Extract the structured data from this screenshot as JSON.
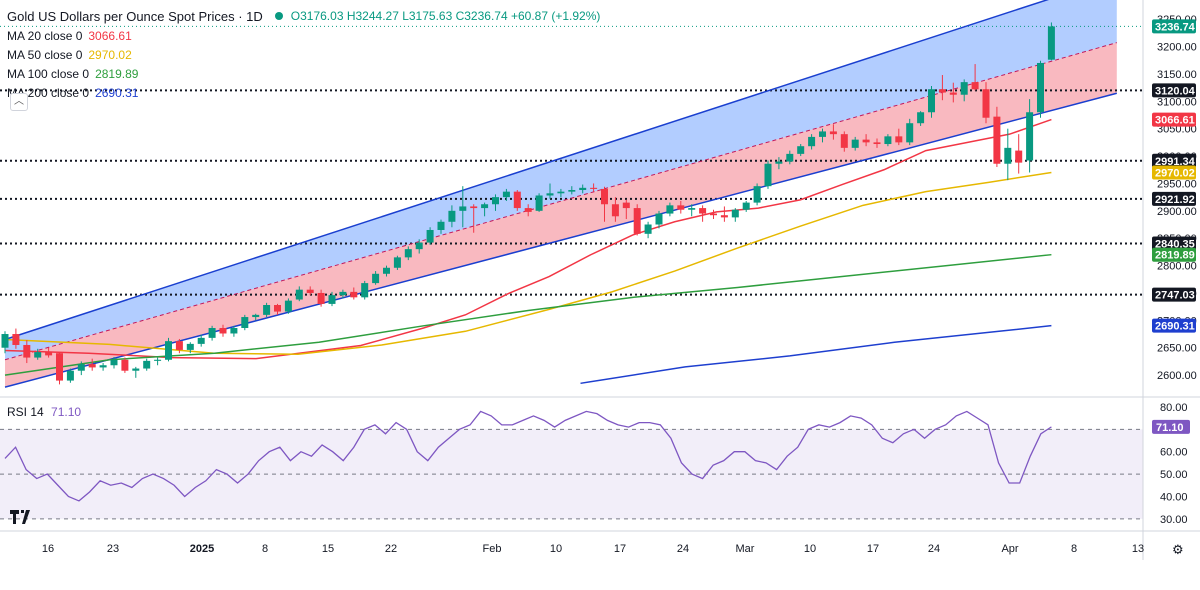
{
  "header": {
    "title": "Gold US Dollars per Ounce Spot Prices · 1D",
    "ohlc": "O3176.03 H3244.27 L3175.63 C3236.74 +60.87 (+1.92%)",
    "up_color": "#089981",
    "down_color": "#f23645"
  },
  "indicators": [
    {
      "label": "MA 20 close 0",
      "value": "3066.61",
      "color": "#f23645"
    },
    {
      "label": "MA 50 close 0",
      "value": "2970.02",
      "color": "#e6b800"
    },
    {
      "label": "MA 100 close 0",
      "value": "2819.89",
      "color": "#2e9e3e"
    },
    {
      "label": "MA 200 close 0",
      "value": "2690.31",
      "color": "#1e3fcf"
    }
  ],
  "rsi": {
    "label": "RSI 14",
    "value": "71.10",
    "color": "#7e57c2",
    "ticks": [
      "80.00",
      "60.00",
      "50.00",
      "40.00",
      "30.00"
    ],
    "badge": "71.10"
  },
  "chart_data": {
    "type": "candlestick",
    "price_ticks": [
      "3250.00",
      "3200.00",
      "3150.00",
      "3100.00",
      "3050.00",
      "3000.00",
      "2950.00",
      "2900.00",
      "2850.00",
      "2800.00",
      "2750.00",
      "2700.00",
      "2650.00",
      "2600.00"
    ],
    "x_tick_labels": [
      "16",
      "23",
      "2025",
      "8",
      "15",
      "22",
      "Feb",
      "10",
      "17",
      "24",
      "Mar",
      "10",
      "17",
      "24",
      "Apr",
      "8",
      "13"
    ],
    "horizontal_levels": [
      {
        "price": 3120.04,
        "label": "3120.04"
      },
      {
        "price": 2991.34,
        "label": "2991.34"
      },
      {
        "price": 2921.92,
        "label": "2921.92"
      },
      {
        "price": 2840.35,
        "label": "2840.35"
      },
      {
        "price": 2747.03,
        "label": "2747.03"
      }
    ],
    "badges": [
      {
        "price": 3236.74,
        "label": "3236.74",
        "color": "#089981"
      },
      {
        "price": 3120.04,
        "label": "3120.04",
        "color": "#131722"
      },
      {
        "price": 3066.61,
        "label": "3066.61",
        "color": "#f23645"
      },
      {
        "price": 2991.34,
        "label": "2991.34",
        "color": "#131722"
      },
      {
        "price": 2970.02,
        "label": "2970.02",
        "color": "#e6b800"
      },
      {
        "price": 2921.92,
        "label": "2921.92",
        "color": "#131722"
      },
      {
        "price": 2840.35,
        "label": "2840.35",
        "color": "#131722"
      },
      {
        "price": 2819.89,
        "label": "2819.89",
        "color": "#2e9e3e"
      },
      {
        "price": 2747.03,
        "label": "2747.03",
        "color": "#131722"
      },
      {
        "price": 2690.31,
        "label": "2690.31",
        "color": "#1e3fcf"
      }
    ],
    "channel": {
      "upper": [
        [
          0,
          2665
        ],
        [
          84,
          3210
        ]
      ],
      "middle": [
        [
          0,
          2628
        ],
        [
          84,
          3105
        ]
      ],
      "lower": [
        [
          0,
          2578
        ],
        [
          84,
          3020
        ]
      ]
    },
    "candles": [
      [
        2650,
        2680,
        2640,
        2675
      ],
      [
        2675,
        2685,
        2648,
        2655
      ],
      [
        2655,
        2664,
        2622,
        2632
      ],
      [
        2632,
        2648,
        2628,
        2642
      ],
      [
        2642,
        2650,
        2632,
        2636
      ],
      [
        2640,
        2642,
        2583,
        2590
      ],
      [
        2590,
        2612,
        2586,
        2608
      ],
      [
        2608,
        2625,
        2600,
        2620
      ],
      [
        2620,
        2630,
        2608,
        2614
      ],
      [
        2614,
        2622,
        2608,
        2618
      ],
      [
        2618,
        2633,
        2612,
        2628
      ],
      [
        2628,
        2632,
        2604,
        2608
      ],
      [
        2608,
        2615,
        2595,
        2612
      ],
      [
        2612,
        2630,
        2608,
        2626
      ],
      [
        2626,
        2632,
        2618,
        2628
      ],
      [
        2628,
        2668,
        2625,
        2662
      ],
      [
        2662,
        2666,
        2640,
        2646
      ],
      [
        2646,
        2660,
        2640,
        2657
      ],
      [
        2657,
        2674,
        2652,
        2668
      ],
      [
        2668,
        2690,
        2663,
        2686
      ],
      [
        2686,
        2692,
        2670,
        2676
      ],
      [
        2676,
        2690,
        2670,
        2686
      ],
      [
        2686,
        2710,
        2682,
        2706
      ],
      [
        2706,
        2712,
        2700,
        2710
      ],
      [
        2710,
        2732,
        2706,
        2728
      ],
      [
        2728,
        2730,
        2710,
        2716
      ],
      [
        2716,
        2740,
        2712,
        2736
      ],
      [
        2738,
        2762,
        2735,
        2756
      ],
      [
        2756,
        2762,
        2746,
        2750
      ],
      [
        2750,
        2756,
        2725,
        2730
      ],
      [
        2730,
        2752,
        2726,
        2746
      ],
      [
        2746,
        2756,
        2740,
        2752
      ],
      [
        2752,
        2760,
        2738,
        2742
      ],
      [
        2742,
        2772,
        2738,
        2768
      ],
      [
        2768,
        2790,
        2765,
        2785
      ],
      [
        2785,
        2800,
        2780,
        2796
      ],
      [
        2796,
        2818,
        2792,
        2815
      ],
      [
        2815,
        2835,
        2810,
        2830
      ],
      [
        2830,
        2848,
        2822,
        2842
      ],
      [
        2842,
        2870,
        2838,
        2865
      ],
      [
        2865,
        2884,
        2858,
        2880
      ],
      [
        2880,
        2910,
        2870,
        2900
      ],
      [
        2900,
        2945,
        2870,
        2908
      ],
      [
        2908,
        2912,
        2860,
        2905
      ],
      [
        2905,
        2915,
        2890,
        2912
      ],
      [
        2912,
        2930,
        2900,
        2925
      ],
      [
        2925,
        2940,
        2918,
        2935
      ],
      [
        2935,
        2938,
        2900,
        2905
      ],
      [
        2905,
        2912,
        2890,
        2898
      ],
      [
        2900,
        2932,
        2898,
        2928
      ],
      [
        2928,
        2950,
        2922,
        2932
      ],
      [
        2932,
        2940,
        2925,
        2935
      ],
      [
        2935,
        2945,
        2930,
        2938
      ],
      [
        2938,
        2948,
        2932,
        2942
      ],
      [
        2942,
        2950,
        2935,
        2940
      ],
      [
        2940,
        2944,
        2880,
        2912
      ],
      [
        2912,
        2925,
        2880,
        2890
      ],
      [
        2915,
        2920,
        2885,
        2905
      ],
      [
        2905,
        2912,
        2855,
        2858
      ],
      [
        2858,
        2880,
        2850,
        2875
      ],
      [
        2875,
        2900,
        2868,
        2895
      ],
      [
        2895,
        2915,
        2890,
        2910
      ],
      [
        2910,
        2918,
        2895,
        2902
      ],
      [
        2902,
        2912,
        2890,
        2905
      ],
      [
        2905,
        2910,
        2880,
        2895
      ],
      [
        2895,
        2902,
        2885,
        2892
      ],
      [
        2892,
        2908,
        2880,
        2888
      ],
      [
        2888,
        2905,
        2880,
        2902
      ],
      [
        2902,
        2918,
        2898,
        2915
      ],
      [
        2915,
        2950,
        2910,
        2945
      ],
      [
        2945,
        2992,
        2940,
        2986
      ],
      [
        2986,
        2998,
        2976,
        2990
      ],
      [
        2990,
        3010,
        2985,
        3004
      ],
      [
        3004,
        3022,
        3000,
        3018
      ],
      [
        3018,
        3040,
        3012,
        3035
      ],
      [
        3035,
        3050,
        3025,
        3045
      ],
      [
        3045,
        3058,
        3030,
        3040
      ],
      [
        3040,
        3045,
        3008,
        3015
      ],
      [
        3015,
        3035,
        3010,
        3030
      ],
      [
        3030,
        3040,
        3018,
        3025
      ],
      [
        3025,
        3032,
        3015,
        3022
      ],
      [
        3022,
        3040,
        3018,
        3036
      ],
      [
        3036,
        3050,
        3020,
        3025
      ],
      [
        3025,
        3068,
        3020,
        3060
      ],
      [
        3060,
        3082,
        3055,
        3080
      ],
      [
        3080,
        3128,
        3070,
        3122
      ],
      [
        3122,
        3148,
        3102,
        3116
      ],
      [
        3116,
        3134,
        3098,
        3112
      ],
      [
        3112,
        3140,
        3100,
        3135
      ],
      [
        3135,
        3168,
        3120,
        3122
      ],
      [
        3122,
        3135,
        3060,
        3070
      ],
      [
        3072,
        3090,
        2980,
        2986
      ],
      [
        2986,
        3050,
        2956,
        3015
      ],
      [
        3010,
        3040,
        2968,
        2988
      ],
      [
        2992,
        3104,
        2970,
        3080
      ],
      [
        3080,
        3174,
        3070,
        3170
      ],
      [
        3176,
        3244,
        3175,
        3236.74
      ]
    ],
    "series": [
      {
        "name": "MA 20 close 0",
        "values": [
          [
            0,
            2645
          ],
          [
            8,
            2640
          ],
          [
            16,
            2632
          ],
          [
            24,
            2630
          ],
          [
            34,
            2654
          ],
          [
            40,
            2686
          ],
          [
            44,
            2710
          ],
          [
            48,
            2748
          ],
          [
            52,
            2780
          ],
          [
            56,
            2820
          ],
          [
            60,
            2856
          ],
          [
            64,
            2880
          ],
          [
            68,
            2898
          ],
          [
            72,
            2905
          ],
          [
            76,
            2920
          ],
          [
            80,
            2948
          ],
          [
            84,
            2975
          ],
          [
            88,
            3010
          ],
          [
            92,
            3025
          ],
          [
            96,
            3040
          ],
          [
            100,
            3066.61
          ]
        ]
      },
      {
        "name": "MA 50 close 0",
        "values": [
          [
            0,
            2665
          ],
          [
            10,
            2656
          ],
          [
            20,
            2640
          ],
          [
            28,
            2638
          ],
          [
            36,
            2655
          ],
          [
            44,
            2680
          ],
          [
            52,
            2720
          ],
          [
            58,
            2752
          ],
          [
            64,
            2790
          ],
          [
            70,
            2832
          ],
          [
            76,
            2872
          ],
          [
            82,
            2910
          ],
          [
            88,
            2935
          ],
          [
            94,
            2952
          ],
          [
            100,
            2970.02
          ]
        ]
      },
      {
        "name": "MA 100 close 0",
        "values": [
          [
            0,
            2600
          ],
          [
            10,
            2628
          ],
          [
            20,
            2640
          ],
          [
            30,
            2660
          ],
          [
            40,
            2690
          ],
          [
            50,
            2718
          ],
          [
            60,
            2742
          ],
          [
            70,
            2760
          ],
          [
            80,
            2780
          ],
          [
            90,
            2800
          ],
          [
            100,
            2819.89
          ]
        ]
      },
      {
        "name": "MA 200 close 0",
        "values": [
          [
            55,
            2585
          ],
          [
            65,
            2615
          ],
          [
            75,
            2635
          ],
          [
            85,
            2660
          ],
          [
            95,
            2680
          ],
          [
            100,
            2690.31
          ]
        ]
      }
    ],
    "rsi_values": [
      57,
      62,
      52,
      48,
      50,
      45,
      40,
      38,
      42,
      47,
      45,
      46,
      44,
      48,
      50,
      48,
      45,
      40,
      44,
      47,
      52,
      50,
      46,
      50,
      56,
      60,
      62,
      56,
      60,
      58,
      63,
      60,
      56,
      62,
      70,
      72,
      68,
      73,
      70,
      60,
      56,
      62,
      66,
      70,
      72,
      78,
      76,
      72,
      72,
      74,
      76,
      74,
      71,
      74,
      76,
      78,
      77,
      74,
      72,
      71,
      73,
      73,
      72,
      66,
      55,
      50,
      48,
      54,
      56,
      60,
      60,
      56,
      55,
      52,
      58,
      62,
      70,
      72,
      71,
      73,
      76,
      75,
      72,
      66,
      64,
      68,
      70,
      66,
      70,
      72,
      76,
      78,
      75,
      72,
      55,
      46,
      46,
      58,
      68,
      71.1
    ]
  }
}
